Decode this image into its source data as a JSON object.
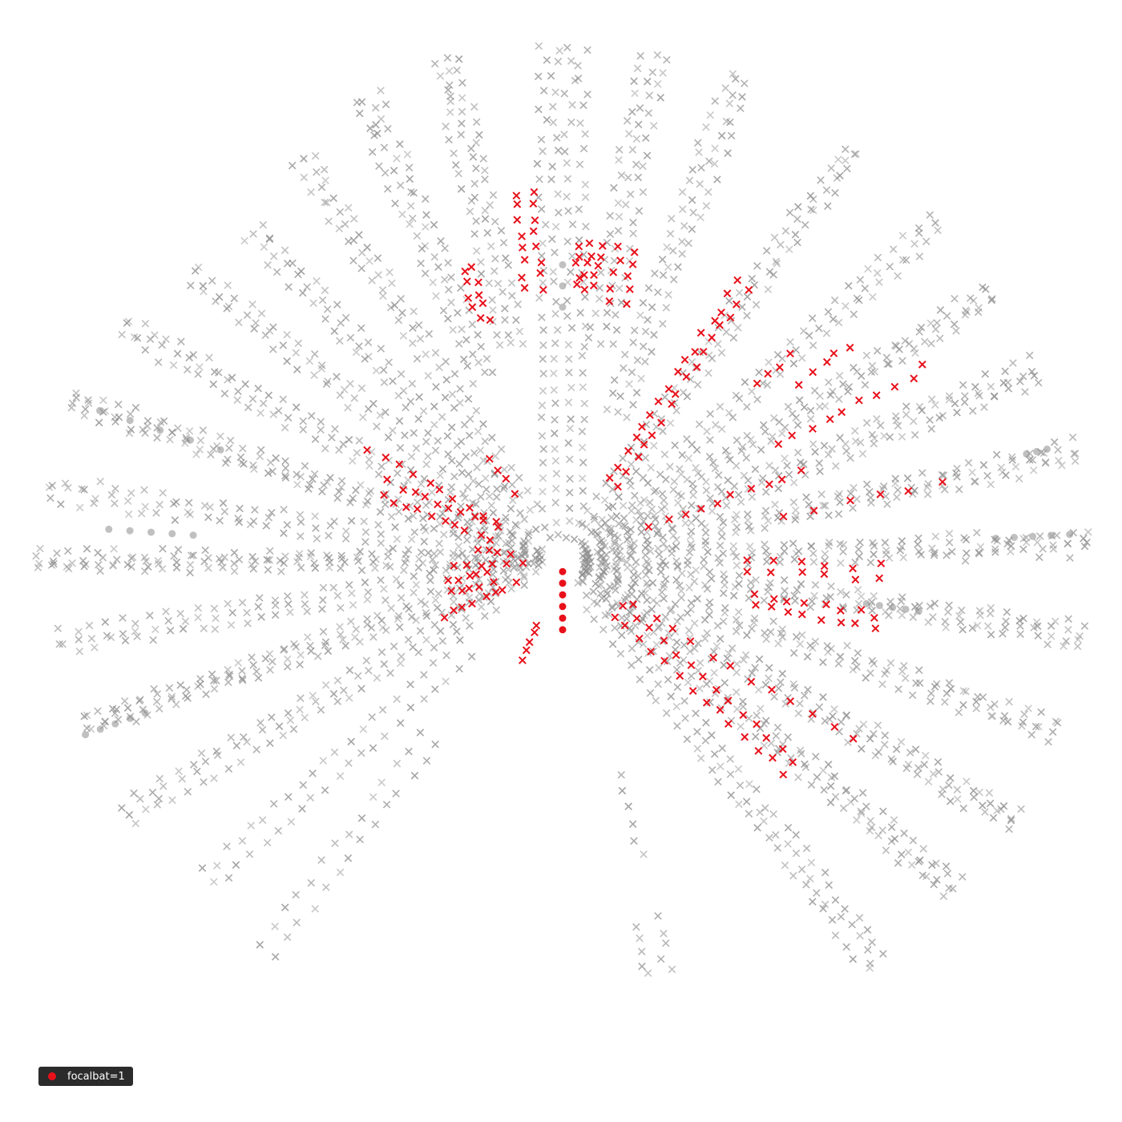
{
  "chart_data": {
    "type": "scatter",
    "projection": "polar",
    "title": "",
    "xlabel": "",
    "ylabel": "",
    "grid": false,
    "legend_position": "bottom-left",
    "colors": {
      "highlight": "#e8101a",
      "background_points": "#8c8c8c"
    },
    "legend": [
      {
        "label": "focalbat=1",
        "color": "#e8101a"
      }
    ],
    "markers": {
      "call_point": "x",
      "bat_position": "circle"
    },
    "beams": [
      {
        "angle": 90,
        "r_from": 0.05,
        "r_to": 0.97,
        "rows": 34,
        "cols": 4,
        "spread": 0.11,
        "highlight": false
      },
      {
        "angle": 103,
        "r_from": 0.42,
        "r_to": 0.97,
        "rows": 24,
        "cols": 3,
        "spread": 0.06,
        "highlight": false
      },
      {
        "angle": 113,
        "r_from": 0.38,
        "r_to": 0.95,
        "rows": 24,
        "cols": 3,
        "spread": 0.06,
        "highlight": false
      },
      {
        "angle": 123,
        "r_from": 0.12,
        "r_to": 0.9,
        "rows": 28,
        "cols": 3,
        "spread": 0.05,
        "highlight": false
      },
      {
        "angle": 133,
        "r_from": 0.18,
        "r_to": 0.85,
        "rows": 24,
        "cols": 3,
        "spread": 0.05,
        "highlight": false
      },
      {
        "angle": 142,
        "r_from": 0.08,
        "r_to": 0.88,
        "rows": 28,
        "cols": 3,
        "spread": 0.05,
        "highlight": false
      },
      {
        "angle": 152,
        "r_from": 0.08,
        "r_to": 0.94,
        "rows": 32,
        "cols": 3,
        "spread": 0.05,
        "highlight": false
      },
      {
        "angle": 162,
        "r_from": 0.05,
        "r_to": 0.97,
        "rows": 34,
        "cols": 4,
        "spread": 0.05,
        "highlight": false
      },
      {
        "angle": 172,
        "r_from": 0.05,
        "r_to": 0.98,
        "rows": 32,
        "cols": 3,
        "spread": 0.05,
        "highlight": false
      },
      {
        "angle": 180,
        "r_from": 0.04,
        "r_to": 0.99,
        "rows": 34,
        "cols": 4,
        "spread": 0.04,
        "highlight": false
      },
      {
        "angle": 189,
        "r_from": 0.05,
        "r_to": 0.96,
        "rows": 32,
        "cols": 3,
        "spread": 0.05,
        "highlight": false
      },
      {
        "angle": 199,
        "r_from": 0.08,
        "r_to": 0.95,
        "rows": 32,
        "cols": 4,
        "spread": 0.05,
        "highlight": false
      },
      {
        "angle": 210,
        "r_from": 0.15,
        "r_to": 0.95,
        "rows": 28,
        "cols": 3,
        "spread": 0.05,
        "highlight": false
      },
      {
        "angle": 222,
        "r_from": 0.25,
        "r_to": 0.9,
        "rows": 22,
        "cols": 2,
        "spread": 0.05,
        "highlight": false
      },
      {
        "angle": 233,
        "r_from": 0.42,
        "r_to": 0.92,
        "rows": 14,
        "cols": 2,
        "spread": 0.05,
        "highlight": false
      },
      {
        "angle": 285,
        "r_from": 0.42,
        "r_to": 0.58,
        "rows": 6,
        "cols": 1,
        "spread": 0.03,
        "highlight": false
      },
      {
        "angle": 283,
        "r_from": 0.7,
        "r_to": 0.8,
        "rows": 5,
        "cols": 2,
        "spread": 0.06,
        "highlight": false
      },
      {
        "angle": 308,
        "r_from": 0.1,
        "r_to": 0.96,
        "rows": 32,
        "cols": 3,
        "spread": 0.06,
        "highlight": false
      },
      {
        "angle": 320,
        "r_from": 0.05,
        "r_to": 0.96,
        "rows": 34,
        "cols": 4,
        "spread": 0.06,
        "highlight": false
      },
      {
        "angle": 330,
        "r_from": 0.05,
        "r_to": 0.98,
        "rows": 34,
        "cols": 4,
        "spread": 0.06,
        "highlight": false
      },
      {
        "angle": 341,
        "r_from": 0.05,
        "r_to": 0.98,
        "rows": 32,
        "cols": 4,
        "spread": 0.05,
        "highlight": false
      },
      {
        "angle": 352,
        "r_from": 0.05,
        "r_to": 0.99,
        "rows": 34,
        "cols": 4,
        "spread": 0.05,
        "highlight": false
      },
      {
        "angle": 2,
        "r_from": 0.04,
        "r_to": 0.99,
        "rows": 34,
        "cols": 4,
        "spread": 0.05,
        "highlight": false
      },
      {
        "angle": 12,
        "r_from": 0.05,
        "r_to": 0.99,
        "rows": 34,
        "cols": 4,
        "spread": 0.05,
        "highlight": false
      },
      {
        "angle": 22,
        "r_from": 0.05,
        "r_to": 0.96,
        "rows": 34,
        "cols": 4,
        "spread": 0.06,
        "highlight": false
      },
      {
        "angle": 32,
        "r_from": 0.05,
        "r_to": 0.95,
        "rows": 32,
        "cols": 4,
        "spread": 0.05,
        "highlight": false
      },
      {
        "angle": 42,
        "r_from": 0.1,
        "r_to": 0.95,
        "rows": 30,
        "cols": 3,
        "spread": 0.05,
        "highlight": false
      },
      {
        "angle": 55,
        "r_from": 0.08,
        "r_to": 0.95,
        "rows": 32,
        "cols": 3,
        "spread": 0.05,
        "highlight": false
      },
      {
        "angle": 70,
        "r_from": 0.3,
        "r_to": 0.97,
        "rows": 26,
        "cols": 3,
        "spread": 0.06,
        "highlight": false
      },
      {
        "angle": 80,
        "r_from": 0.42,
        "r_to": 0.97,
        "rows": 22,
        "cols": 3,
        "spread": 0.06,
        "highlight": false
      },
      {
        "angle": 96,
        "r_from": 0.52,
        "r_to": 0.7,
        "rows": 8,
        "cols": 2,
        "spread": 0.05,
        "highlight": true
      },
      {
        "angle": 85,
        "r_from": 0.52,
        "r_to": 0.6,
        "rows": 5,
        "cols": 3,
        "spread": 0.05,
        "highlight": true
      },
      {
        "angle": 78,
        "r_from": 0.5,
        "r_to": 0.6,
        "rows": 5,
        "cols": 2,
        "spread": 0.04,
        "highlight": true
      },
      {
        "angle": 108,
        "r_from": 0.48,
        "r_to": 0.58,
        "rows": 5,
        "cols": 2,
        "spread": 0.03,
        "highlight": true
      },
      {
        "angle": 125,
        "r_from": 0.16,
        "r_to": 0.24,
        "rows": 4,
        "cols": 1,
        "spread": 0.03,
        "highlight": true
      },
      {
        "angle": 150,
        "r_from": 0.14,
        "r_to": 0.42,
        "rows": 10,
        "cols": 1,
        "spread": 0.03,
        "highlight": true
      },
      {
        "angle": 158,
        "r_from": 0.14,
        "r_to": 0.36,
        "rows": 10,
        "cols": 2,
        "spread": 0.04,
        "highlight": true
      },
      {
        "angle": 172,
        "r_from": 0.1,
        "r_to": 0.16,
        "rows": 4,
        "cols": 1,
        "spread": 0.03,
        "highlight": true
      },
      {
        "angle": 183,
        "r_from": 0.08,
        "r_to": 0.2,
        "rows": 6,
        "cols": 1,
        "spread": 0.03,
        "highlight": true
      },
      {
        "angle": 193,
        "r_from": 0.14,
        "r_to": 0.22,
        "rows": 5,
        "cols": 2,
        "spread": 0.03,
        "highlight": true
      },
      {
        "angle": 205,
        "r_from": 0.1,
        "r_to": 0.25,
        "rows": 8,
        "cols": 1,
        "spread": 0.02,
        "highlight": true
      },
      {
        "angle": 248,
        "r_from": 0.13,
        "r_to": 0.2,
        "rows": 5,
        "cols": 1,
        "spread": 0.02,
        "highlight": true
      },
      {
        "angle": 318,
        "r_from": 0.14,
        "r_to": 0.58,
        "rows": 14,
        "cols": 2,
        "spread": 0.04,
        "highlight": true
      },
      {
        "angle": 328,
        "r_from": 0.16,
        "r_to": 0.64,
        "rows": 12,
        "cols": 1,
        "spread": 0.04,
        "highlight": true
      },
      {
        "angle": 349,
        "r_from": 0.37,
        "r_to": 0.6,
        "rows": 8,
        "cols": 2,
        "spread": 0.03,
        "highlight": true
      },
      {
        "angle": 358,
        "r_from": 0.35,
        "r_to": 0.6,
        "rows": 6,
        "cols": 2,
        "spread": 0.03,
        "highlight": true
      },
      {
        "angle": 12,
        "r_from": 0.43,
        "r_to": 0.73,
        "rows": 6,
        "cols": 1,
        "spread": 0.03,
        "highlight": true
      },
      {
        "angle": 21,
        "r_from": 0.18,
        "r_to": 0.48,
        "rows": 10,
        "cols": 1,
        "spread": 0.03,
        "highlight": true
      },
      {
        "angle": 28,
        "r_from": 0.46,
        "r_to": 0.78,
        "rows": 10,
        "cols": 1,
        "spread": 0.03,
        "highlight": true
      },
      {
        "angle": 37,
        "r_from": 0.56,
        "r_to": 0.68,
        "rows": 5,
        "cols": 1,
        "spread": 0.03,
        "highlight": true
      },
      {
        "angle": 57,
        "r_from": 0.18,
        "r_to": 0.62,
        "rows": 16,
        "cols": 2,
        "spread": 0.03,
        "highlight": true
      },
      {
        "angle": 42,
        "r_from": 0.5,
        "r_to": 0.58,
        "rows": 4,
        "cols": 1,
        "spread": 0.02,
        "highlight": true
      }
    ],
    "bat_clusters": [
      {
        "angle": 270,
        "r_from": 0.02,
        "r_to": 0.13,
        "count": 6,
        "highlight": true
      },
      {
        "angle": 162,
        "r_from": 0.68,
        "r_to": 0.92,
        "count": 5,
        "highlight": false
      },
      {
        "angle": 176,
        "r_from": 0.7,
        "r_to": 0.86,
        "count": 5,
        "highlight": false
      },
      {
        "angle": 200,
        "r_from": 0.84,
        "r_to": 0.96,
        "count": 5,
        "highlight": false
      },
      {
        "angle": 3,
        "r_from": 0.82,
        "r_to": 0.96,
        "count": 5,
        "highlight": false
      },
      {
        "angle": 352,
        "r_from": 0.58,
        "r_to": 0.68,
        "count": 5,
        "highlight": false
      },
      {
        "angle": 90,
        "r_from": 0.48,
        "r_to": 0.56,
        "count": 3,
        "highlight": false
      },
      {
        "angle": 13,
        "r_from": 0.9,
        "r_to": 0.94,
        "count": 3,
        "highlight": false
      }
    ]
  }
}
